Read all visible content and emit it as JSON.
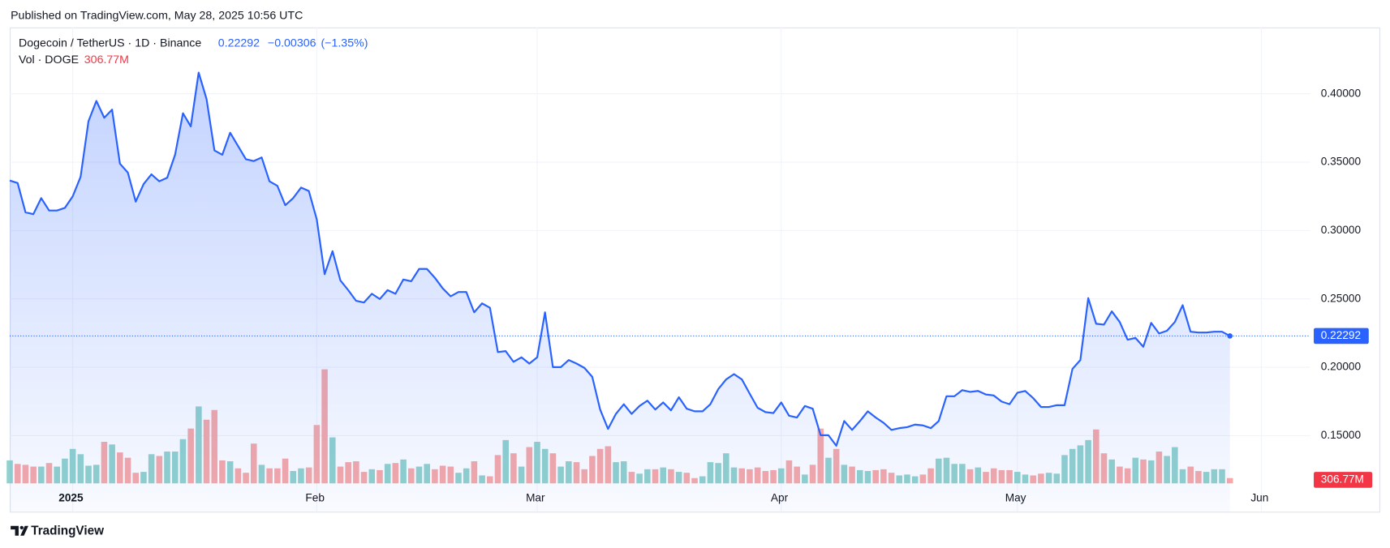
{
  "published": "Published on TradingView.com, May 28, 2025 10:56 UTC",
  "brand": "TradingView",
  "chart_data": {
    "type": "line",
    "change": "−0.00306",
    "change_pct": "(−1.35%)",
    "xlim": [
      0,
      165.2
    ],
    "xticks": [
      {
        "value": 8,
        "label": "2025"
      },
      {
        "value": 39,
        "label": "Feb"
      },
      {
        "value": 67,
        "label": "Mar"
      },
      {
        "value": 98,
        "label": "Apr"
      },
      {
        "value": 128,
        "label": "May"
      },
      {
        "value": 159,
        "label": "Jun"
      }
    ],
    "ylim": [
      0.0944,
      0.4485
    ],
    "yticks": [
      {
        "value": 0.15,
        "label": "0.15000"
      },
      {
        "value": 0.2,
        "label": "0.20000"
      },
      {
        "value": 0.25,
        "label": "0.25000"
      },
      {
        "value": 0.3,
        "label": "0.30000"
      },
      {
        "value": 0.35,
        "label": "0.35000"
      },
      {
        "value": 0.4,
        "label": "0.40000"
      }
    ],
    "y2lim": [
      0,
      26300
    ],
    "grid": true,
    "series": [
      {
        "name": "Dogecoin / TetherUS · 1D · Binance",
        "color": "#2962ff",
        "values": [
          0.3366,
          0.3347,
          0.3133,
          0.312,
          0.3237,
          0.3146,
          0.3146,
          0.3166,
          0.325,
          0.3392,
          0.3799,
          0.3948,
          0.3825,
          0.3884,
          0.3489,
          0.3424,
          0.3211,
          0.334,
          0.3411,
          0.336,
          0.3386,
          0.3554,
          0.3858,
          0.3761,
          0.4155,
          0.3961,
          0.3586,
          0.3554,
          0.3715,
          0.3618,
          0.3521,
          0.3508,
          0.3534,
          0.336,
          0.3327,
          0.3185,
          0.3237,
          0.3314,
          0.3289,
          0.3082,
          0.2681,
          0.2849,
          0.2635,
          0.2564,
          0.2486,
          0.2474,
          0.2538,
          0.2499,
          0.2564,
          0.2538,
          0.2642,
          0.2629,
          0.2719,
          0.2719,
          0.2655,
          0.2577,
          0.2519,
          0.2551,
          0.2551,
          0.2402,
          0.2467,
          0.2435,
          0.2111,
          0.2118,
          0.204,
          0.2073,
          0.2027,
          0.2073,
          0.2402,
          0.2001,
          0.2001,
          0.2053,
          0.2027,
          0.1995,
          0.193,
          0.1691,
          0.1549,
          0.1659,
          0.173,
          0.1659,
          0.1717,
          0.1756,
          0.1691,
          0.1743,
          0.1685,
          0.1781,
          0.1697,
          0.1678,
          0.1678,
          0.173,
          0.184,
          0.1911,
          0.195,
          0.1911,
          0.1807,
          0.1704,
          0.1672,
          0.1665,
          0.1743,
          0.1646,
          0.1633,
          0.1717,
          0.1697,
          0.1503,
          0.1503,
          0.1426,
          0.1607,
          0.1542,
          0.1607,
          0.1678,
          0.1633,
          0.1594,
          0.1542,
          0.1555,
          0.1562,
          0.1581,
          0.1575,
          0.1555,
          0.1607,
          0.1788,
          0.1788,
          0.1833,
          0.182,
          0.1827,
          0.1801,
          0.1794,
          0.1749,
          0.173,
          0.1814,
          0.1827,
          0.1775,
          0.171,
          0.171,
          0.1723,
          0.1723,
          0.1988,
          0.2053,
          0.2506,
          0.2318,
          0.2312,
          0.2409,
          0.2331,
          0.2202,
          0.2215,
          0.215,
          0.2325,
          0.2247,
          0.2267,
          0.2331,
          0.2454,
          0.226,
          0.2254,
          0.2254,
          0.226,
          0.226,
          0.22292
        ]
      },
      {
        "name": "Vol · DOGE",
        "axis": "y2",
        "color": "#f23645",
        "up_color": "#92d2cc",
        "down_color": "#f7a9a7",
        "last_label": "306.77M",
        "values": [
          1326,
          1122,
          1071,
          969,
          969,
          1173,
          969,
          1428,
          1989,
          1683,
          1020,
          1071,
          2397,
          2244,
          1785,
          1479,
          612,
          663,
          1683,
          1581,
          1836,
          1836,
          2550,
          3162,
          4437,
          3672,
          4233,
          1326,
          1275,
          867,
          612,
          2295,
          1071,
          867,
          867,
          1428,
          714,
          867,
          918,
          3366,
          6579,
          2652,
          969,
          1224,
          1275,
          663,
          816,
          765,
          1122,
          1173,
          1377,
          867,
          969,
          1122,
          816,
          1020,
          969,
          612,
          867,
          1275,
          459,
          408,
          1632,
          2499,
          1734,
          969,
          2091,
          2397,
          1989,
          1734,
          969,
          1275,
          1224,
          816,
          1581,
          1989,
          2142,
          1224,
          1275,
          663,
          561,
          816,
          816,
          918,
          816,
          663,
          612,
          306,
          408,
          1224,
          1173,
          1734,
          918,
          867,
          816,
          918,
          714,
          765,
          867,
          1326,
          969,
          510,
          1071,
          3162,
          1479,
          1989,
          1071,
          969,
          765,
          714,
          765,
          816,
          612,
          459,
          510,
          408,
          510,
          867,
          1428,
          1479,
          1122,
          1122,
          816,
          918,
          663,
          867,
          765,
          765,
          663,
          510,
          459,
          561,
          612,
          561,
          1632,
          1989,
          2193,
          2499,
          3111,
          1734,
          1377,
          969,
          867,
          1479,
          1377,
          1326,
          1836,
          1581,
          2091,
          816,
          969,
          714,
          663,
          816,
          816,
          306.77
        ]
      }
    ]
  }
}
